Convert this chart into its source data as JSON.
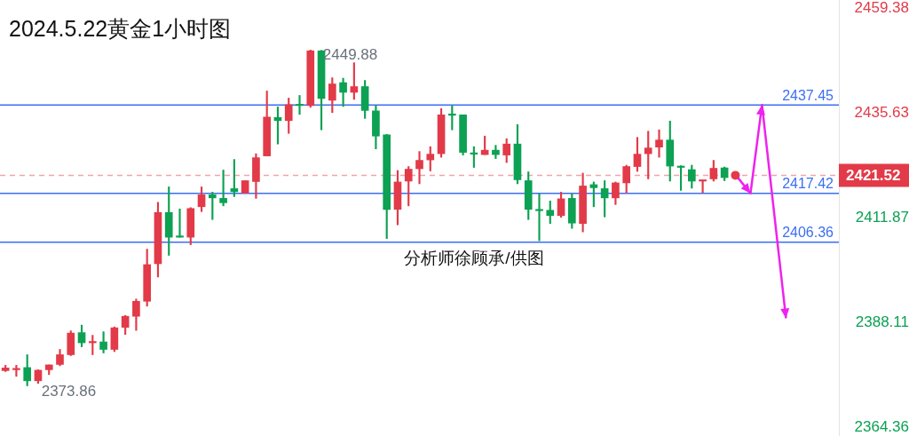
{
  "chart_data": {
    "type": "candlestick",
    "title": "2024.5.22黄金1小时图",
    "categories": [
      null,
      null,
      null,
      null,
      null,
      null,
      null,
      null,
      null,
      null,
      null,
      null,
      null,
      null,
      null,
      null,
      null,
      null,
      null,
      null,
      null,
      null,
      null,
      null,
      null,
      null,
      null,
      null,
      null,
      null,
      null,
      null,
      null,
      null,
      null,
      null,
      null,
      null,
      null,
      null,
      null,
      null,
      null,
      null,
      null,
      null,
      null,
      null,
      null,
      null,
      null,
      null,
      null,
      null,
      null,
      null,
      null,
      null,
      null,
      null,
      null,
      null,
      null,
      null,
      null,
      null,
      null,
      null,
      null,
      null,
      null,
      null,
      null,
      null,
      null,
      null,
      null
    ],
    "ohlc": [
      [
        2377.3,
        2378.5,
        2377.1,
        2377.9
      ],
      [
        2377.5,
        2378.5,
        2376.0,
        2377.7
      ],
      [
        2378.0,
        2380.9,
        2373.86,
        2375.0
      ],
      [
        2375.0,
        2377.5,
        2374.4,
        2377.4
      ],
      [
        2377.5,
        2378.6,
        2376.4,
        2378.6
      ],
      [
        2378.7,
        2382.1,
        2378.4,
        2380.9
      ],
      [
        2380.9,
        2386.3,
        2380.7,
        2385.8
      ],
      [
        2385.9,
        2387.6,
        2382.7,
        2383.6
      ],
      [
        2383.6,
        2385.3,
        2380.9,
        2383.8
      ],
      [
        2383.8,
        2386.1,
        2381.3,
        2382.1
      ],
      [
        2382.1,
        2387.2,
        2381.6,
        2387.0
      ],
      [
        2387.1,
        2389.8,
        2385.5,
        2389.6
      ],
      [
        2389.6,
        2393.5,
        2386.4,
        2393.0
      ],
      [
        2393.0,
        2404.8,
        2391.9,
        2401.3
      ],
      [
        2401.5,
        2415.4,
        2398.5,
        2413.1
      ],
      [
        2413.1,
        2418.9,
        2403.4,
        2407.5
      ],
      [
        2407.6,
        2413.9,
        2407.5,
        2407.5
      ],
      [
        2407.5,
        2414.2,
        2405.8,
        2414.0
      ],
      [
        2414.4,
        2418.9,
        2413.3,
        2417.1
      ],
      [
        2417.1,
        2417.7,
        2411.5,
        2416.4
      ],
      [
        2416.3,
        2422.7,
        2414.6,
        2415.3
      ],
      [
        2418.5,
        2425.1,
        2416.7,
        2417.8
      ],
      [
        2417.5,
        2420.3,
        2417.5,
        2420.3
      ],
      [
        2420.1,
        2426.4,
        2416.3,
        2425.5
      ],
      [
        2425.9,
        2440.6,
        2425.9,
        2434.7
      ],
      [
        2434.6,
        2437.0,
        2428.6,
        2433.9
      ],
      [
        2433.9,
        2439.0,
        2431.0,
        2437.5
      ],
      [
        2437.5,
        2439.6,
        2435.3,
        2437.3
      ],
      [
        2437.3,
        2449.88,
        2436.9,
        2449.7
      ],
      [
        2449.7,
        2449.8,
        2431.8,
        2438.9
      ],
      [
        2438.5,
        2443.6,
        2435.7,
        2442.2
      ],
      [
        2442.5,
        2443.5,
        2437.1,
        2440.3
      ],
      [
        2440.3,
        2447.0,
        2438.7,
        2441.6
      ],
      [
        2441.6,
        2443.0,
        2434.4,
        2436.2
      ],
      [
        2436.1,
        2437.3,
        2427.5,
        2430.4
      ],
      [
        2430.7,
        2430.8,
        2407.2,
        2413.8
      ],
      [
        2413.8,
        2422.6,
        2410.3,
        2420.0
      ],
      [
        2420.2,
        2423.5,
        2414.6,
        2422.9
      ],
      [
        2423.0,
        2426.9,
        2419.6,
        2424.9
      ],
      [
        2425.0,
        2428.0,
        2422.5,
        2426.3
      ],
      [
        2426.4,
        2436.6,
        2425.6,
        2435.2
      ],
      [
        2435.2,
        2437.3,
        2431.8,
        2435.1
      ],
      [
        2435.2,
        2435.2,
        2426.1,
        2426.7
      ],
      [
        2426.4,
        2428.0,
        2423.3,
        2426.3
      ],
      [
        2426.2,
        2430.4,
        2426.2,
        2427.2
      ],
      [
        2427.2,
        2428.3,
        2425.3,
        2426.2
      ],
      [
        2426.1,
        2429.8,
        2424.4,
        2428.6
      ],
      [
        2428.6,
        2433.0,
        2419.6,
        2420.5
      ],
      [
        2420.3,
        2422.3,
        2411.5,
        2413.8
      ],
      [
        2413.6,
        2417.3,
        2406.7,
        2413.5
      ],
      [
        2413.6,
        2415.7,
        2410.6,
        2412.4
      ],
      [
        2412.4,
        2417.7,
        2412.0,
        2416.2
      ],
      [
        2416.3,
        2417.3,
        2409.5,
        2410.7
      ],
      [
        2410.6,
        2422.0,
        2408.7,
        2419.1
      ],
      [
        2419.4,
        2420.0,
        2414.4,
        2418.7
      ],
      [
        2418.5,
        2420.3,
        2412.1,
        2416.4
      ],
      [
        2416.4,
        2420.0,
        2414.9,
        2419.8
      ],
      [
        2419.8,
        2423.8,
        2417.5,
        2423.5
      ],
      [
        2423.5,
        2430.1,
        2422.4,
        2426.3
      ],
      [
        2426.4,
        2431.5,
        2420.7,
        2427.7
      ],
      [
        2427.9,
        2431.8,
        2425.6,
        2429.5
      ],
      [
        2429.5,
        2433.8,
        2420.2,
        2423.6
      ],
      [
        2423.5,
        2423.7,
        2418.1,
        2423.3
      ],
      [
        2422.8,
        2423.8,
        2418.6,
        2420.2
      ],
      [
        2420.2,
        2420.4,
        2417.6,
        2420.3
      ],
      [
        2420.7,
        2424.9,
        2420.2,
        2423.1
      ],
      [
        2423.2,
        2423.4,
        2420.3,
        2421.0
      ],
      null,
      null,
      null,
      null,
      null,
      null,
      null,
      null,
      null,
      null
    ],
    "colors": [
      "#e23a48",
      "#e23a48",
      "#0ca153",
      "#e23a48",
      "#e23a48",
      "#e23a48",
      "#e23a48",
      "#0ca153",
      "#e23a48",
      "#0ca153",
      "#e23a48",
      "#e23a48",
      "#e23a48",
      "#e23a48",
      "#e23a48",
      "#0ca153",
      "#0ca153",
      "#e23a48",
      "#e23a48",
      "#0ca153",
      "#0ca153",
      "#0ca153",
      "#e23a48",
      "#e23a48",
      "#e23a48",
      "#0ca153",
      "#e23a48",
      "#0ca153",
      "#e23a48",
      "#0ca153",
      "#e23a48",
      "#0ca153",
      "#e23a48",
      "#0ca153",
      "#0ca153",
      "#0ca153",
      "#e23a48",
      "#e23a48",
      "#e23a48",
      "#e23a48",
      "#e23a48",
      "#0ca153",
      "#0ca153",
      "#0ca153",
      "#e23a48",
      "#0ca153",
      "#e23a48",
      "#0ca153",
      "#0ca153",
      "#0ca153",
      "#0ca153",
      "#e23a48",
      "#0ca153",
      "#e23a48",
      "#0ca153",
      "#0ca153",
      "#e23a48",
      "#e23a48",
      "#e23a48",
      "#e23a48",
      "#e23a48",
      "#0ca153",
      "#0ca153",
      "#0ca153",
      "#e23a48",
      "#e23a48",
      "#0ca153",
      null,
      null,
      null,
      null,
      null,
      null,
      null,
      null,
      null,
      null
    ],
    "ylim": [
      2362.5,
      2461.2
    ],
    "yticks": [
      2459.38,
      2435.63,
      2411.87,
      2388.11,
      2364.36
    ],
    "ref_lines": [
      {
        "axis": "y",
        "value": 2437.45,
        "label": "2437.45",
        "color": "#3b6ff3"
      },
      {
        "axis": "y",
        "value": 2417.42,
        "label": "2417.42",
        "color": "#3b6ff3"
      },
      {
        "axis": "y",
        "value": 2406.36,
        "label": "2406.36",
        "color": "#3b6ff3"
      },
      {
        "axis": "y",
        "value": 2421.52,
        "label": "2421.52",
        "color": "#f2a3a9",
        "line_style": "dashed"
      }
    ],
    "annotations": [
      "2449.88",
      "2373.86",
      "分析师徐顾承/供图"
    ],
    "tick_labels": "y",
    "grid": false,
    "legend": false
  }
}
